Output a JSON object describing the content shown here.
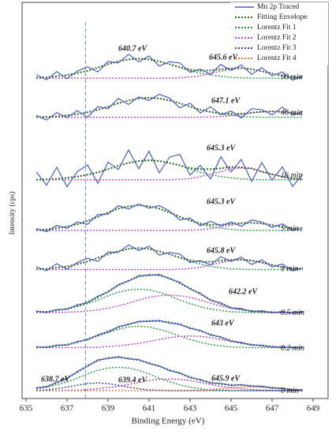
{
  "chart_data": {
    "type": "line",
    "x_label": "Binding Energy (eV)",
    "y_label": "Intensity (cps)",
    "x": [
      635.5,
      636,
      636.5,
      637,
      637.5,
      638,
      638.5,
      639,
      639.5,
      640,
      640.5,
      641,
      641.5,
      642,
      642.5,
      643,
      643.5,
      644,
      644.5,
      645,
      645.5,
      646,
      646.5,
      647,
      647.5,
      648,
      648.5
    ],
    "xlim": [
      635,
      649
    ],
    "xticks": [
      635,
      637,
      639,
      641,
      643,
      645,
      647,
      649
    ],
    "ylim": [
      0,
      100
    ],
    "reference_line": 637.9,
    "series": [
      {
        "name": "Mn 2p Traced",
        "color": "#4a5fc1",
        "dash": "none"
      },
      {
        "name": "Fitting Envelope",
        "color": "#2e6b1f",
        "dash": "2 2"
      },
      {
        "name": "Lorentz Fit 1",
        "color": "#1f9a3a",
        "dash": "2 2"
      },
      {
        "name": "Lorentz Fit 2",
        "color": "#c23fc8",
        "dash": "2 2"
      },
      {
        "name": "Lorentz Fit 3",
        "color": "#2a3a9a",
        "dash": "2 2"
      },
      {
        "name": "Lorentz Fit 4",
        "color": "#e0742a",
        "dash": "2 2"
      }
    ],
    "panels": [
      {
        "label": "90 min",
        "annotations": [
          "640.7 eV",
          "645.6 eV"
        ],
        "values": [
          [
            82.9,
            81.6,
            83.7,
            81.9,
            83.8,
            84.9,
            83.6,
            86.3,
            85.9,
            88.1,
            86.2,
            87.7,
            85.1,
            86.2,
            85.9,
            83.5,
            84.3,
            83.0,
            85.5,
            84.0,
            85.4,
            83.0,
            84.7,
            82.6,
            83.6,
            81.5,
            82.6
          ],
          [
            82.1,
            82.2,
            82.5,
            82.8,
            83.3,
            83.9,
            84.7,
            85.6,
            86.3,
            86.8,
            87,
            86.8,
            86.3,
            85.6,
            84.8,
            84.2,
            83.9,
            84.0,
            84.3,
            84.5,
            84.6,
            84.3,
            83.8,
            83.2,
            82.6,
            82.3,
            82.1
          ],
          [
            82.1,
            82.2,
            82.5,
            82.8,
            83.3,
            83.9,
            84.7,
            85.6,
            86.3,
            86.8,
            87,
            86.8,
            86.3,
            85.6,
            84.7,
            83.9,
            83.3,
            82.8,
            82.5,
            82.2,
            82.1,
            82,
            82,
            82,
            82,
            82,
            82
          ],
          [
            82,
            82,
            82,
            82,
            82,
            82,
            82,
            82,
            82,
            82,
            82,
            82,
            82,
            82.0,
            82.1,
            82.3,
            82.6,
            83.2,
            83.8,
            84.3,
            84.5,
            84.3,
            83.8,
            83.2,
            82.6,
            82.3,
            82.1
          ],
          null,
          null
        ]
      },
      {
        "label": "46 min",
        "annotations": [
          "647.1 eV"
        ],
        "values": [
          [
            72.5,
            71.3,
            73.2,
            71.9,
            73.7,
            72.0,
            74.7,
            74.2,
            76.8,
            75.3,
            77.2,
            76.3,
            77.9,
            76.9,
            74.4,
            75.6,
            73.1,
            74.7,
            72.6,
            73.6,
            71.8,
            74.2,
            73.9,
            72.6,
            74.6,
            72.5,
            73.5
          ],
          [
            72,
            72.1,
            72.2,
            72.5,
            72.8,
            73.3,
            73.9,
            74.7,
            75.6,
            76.3,
            76.8,
            77,
            76.8,
            76.3,
            75.6,
            74.7,
            73.9,
            73.4,
            73.0,
            72.9,
            72.9,
            73.2,
            73.4,
            73.5,
            73.4,
            73.1,
            72.7
          ],
          [
            72,
            72.1,
            72.2,
            72.5,
            72.8,
            73.3,
            73.9,
            74.7,
            75.6,
            76.3,
            76.8,
            77,
            76.8,
            76.3,
            75.6,
            74.7,
            73.9,
            73.3,
            72.8,
            72.5,
            72.2,
            72.1,
            72,
            72,
            72,
            72,
            72
          ],
          [
            72,
            72,
            72,
            72,
            72,
            72,
            72,
            72,
            72,
            72,
            72,
            72,
            72,
            72,
            72,
            72,
            72.0,
            72.1,
            72.2,
            72.4,
            72.7,
            73.1,
            73.4,
            73.5,
            73.4,
            73.1,
            72.7
          ],
          null,
          null
        ]
      },
      {
        "label": "16 min",
        "annotations": [
          "645.3 eV"
        ],
        "values": [
          [
            58,
            54.6,
            59.2,
            54.2,
            58.1,
            59.8,
            55.1,
            60.5,
            58.6,
            63.6,
            58.8,
            63.3,
            57.8,
            61.8,
            62.5,
            57.2,
            59.7,
            56.2,
            61.9,
            58.0,
            61.2,
            55.6,
            60.4,
            55.9,
            59.3,
            54.3,
            57.4
          ],
          [
            56,
            56.1,
            56.2,
            56.5,
            56.8,
            57.3,
            57.9,
            58.7,
            59.6,
            60.3,
            60.8,
            61,
            60.8,
            60.3,
            59.7,
            59.0,
            58.7,
            58.7,
            58.9,
            59.3,
            59.2,
            58.9,
            58.1,
            57.4,
            56.8,
            56.3,
            56.1
          ],
          [
            56,
            56.1,
            56.2,
            56.5,
            56.8,
            57.3,
            57.9,
            58.7,
            59.6,
            60.3,
            60.8,
            61,
            60.8,
            60.3,
            59.6,
            58.7,
            57.9,
            57.3,
            56.8,
            56.5,
            56.2,
            56.1,
            56,
            56,
            56,
            56,
            56
          ],
          [
            56,
            56,
            56,
            56,
            56,
            56,
            56,
            56,
            56,
            56,
            56,
            56,
            56,
            56.0,
            56.1,
            56.3,
            56.8,
            57.4,
            58.1,
            58.8,
            59,
            58.8,
            58.1,
            57.4,
            56.8,
            56.3,
            56.1
          ],
          null,
          null
        ]
      },
      {
        "label": "5 min",
        "annotations": [
          "645.3 eV"
        ],
        "values": [
          [
            43.5,
            42.7,
            44.3,
            43.6,
            45.2,
            44.6,
            47.1,
            47.2,
            49.4,
            48.5,
            49.8,
            48.7,
            49.4,
            48.0,
            45.7,
            46.2,
            44.2,
            45.4,
            44.2,
            45.2,
            44.1,
            45.7,
            45.2,
            43.8,
            44.7,
            43.1,
            43.8
          ],
          [
            43.1,
            43.3,
            43.6,
            44.0,
            44.6,
            45.5,
            46.5,
            47.6,
            48.6,
            49.2,
            49.5,
            49.2,
            48.6,
            47.6,
            46.5,
            45.6,
            44.8,
            44.5,
            44.5,
            44.7,
            44.9,
            45,
            44.8,
            44.4,
            43.9,
            43.5,
            43.2
          ],
          [
            43.1,
            43.3,
            43.6,
            44.0,
            44.6,
            45.5,
            46.5,
            47.6,
            48.6,
            49.2,
            49.5,
            49.2,
            48.6,
            47.6,
            46.5,
            45.5,
            44.6,
            44.0,
            43.6,
            43.3,
            43.1,
            43,
            43,
            43,
            43,
            43,
            43
          ],
          [
            43,
            43,
            43,
            43,
            43,
            43,
            43,
            43,
            43,
            43,
            43,
            43,
            43,
            43,
            43,
            43.1,
            43.2,
            43.5,
            43.9,
            44.4,
            44.8,
            45,
            44.8,
            44.4,
            43.9,
            43.5,
            43.2
          ],
          null,
          null
        ]
      },
      {
        "label": "1 min",
        "annotations": [
          "645.8 eV"
        ],
        "values": [
          [
            33.7,
            32.7,
            34.5,
            33.1,
            34.8,
            35.9,
            35.1,
            37.5,
            37.4,
            39.3,
            37.9,
            39.0,
            36.7,
            37.4,
            37.0,
            34.8,
            35.3,
            34.2,
            36.3,
            35.1,
            36.2,
            34.3,
            35.5,
            33.7,
            34.4,
            32.7,
            33.5
          ],
          [
            33.1,
            33.2,
            33.5,
            33.8,
            34.4,
            35.1,
            36.0,
            36.9,
            37.7,
            38.3,
            38.5,
            38.3,
            37.7,
            36.9,
            36.1,
            35.4,
            35.0,
            35.0,
            35.3,
            35.5,
            35.6,
            35.3,
            34.8,
            34.2,
            33.6,
            33.3,
            33.1
          ],
          [
            33.1,
            33.2,
            33.5,
            33.8,
            34.4,
            35.1,
            36.0,
            36.9,
            37.7,
            38.3,
            38.5,
            38.3,
            37.7,
            36.9,
            36.0,
            35.1,
            34.4,
            33.8,
            33.5,
            33.2,
            33.1,
            33,
            33,
            33,
            33,
            33,
            33
          ],
          [
            33,
            33,
            33,
            33,
            33,
            33,
            33,
            33,
            33,
            33,
            33,
            33,
            33,
            33,
            33.1,
            33.3,
            33.6,
            34.2,
            34.8,
            35.3,
            35.5,
            35.3,
            34.8,
            34.2,
            33.6,
            33.3,
            33.1
          ],
          null,
          null
        ]
      },
      {
        "label": "0.5 min",
        "annotations": [
          "642.2 eV"
        ],
        "values": [
          [
            22.4,
            22.0,
            22.8,
            22.8,
            24.0,
            24.5,
            26.2,
            27.2,
            29.2,
            30.0,
            31.5,
            31.5,
            31.8,
            30.6,
            29.8,
            28.0,
            27.0,
            25.1,
            24.5,
            23.1,
            23.1,
            22.2,
            22.5,
            21.9,
            22.3,
            21.8,
            22.3
          ],
          [
            22.1,
            22.2,
            22.5,
            23.0,
            23.7,
            24.7,
            25.9,
            27.4,
            28.9,
            30.2,
            31.2,
            31.7,
            31.5,
            30.8,
            29.5,
            28.2,
            26.7,
            25.3,
            24.2,
            23.3,
            22.8,
            22.4,
            22.2,
            22.1,
            22,
            22,
            22
          ],
          [
            22.1,
            22.2,
            22.5,
            22.9,
            23.5,
            24.3,
            25.2,
            26.3,
            27.2,
            27.8,
            28,
            27.8,
            27.2,
            26.3,
            25.2,
            24.3,
            23.5,
            22.9,
            22.5,
            22.2,
            22.1,
            22,
            22,
            22,
            22,
            22,
            22
          ],
          [
            22,
            22,
            22,
            22.1,
            22.2,
            22.4,
            22.7,
            23.1,
            23.7,
            24.4,
            25.2,
            25.9,
            26.3,
            26.5,
            26.3,
            25.9,
            25.2,
            24.4,
            23.7,
            23.1,
            22.7,
            22.4,
            22.2,
            22.1,
            22,
            22,
            22
          ],
          null,
          null
        ]
      },
      {
        "label": "0.2 min",
        "annotations": [
          "643 eV"
        ],
        "values": [
          [
            13.3,
            13.0,
            13.7,
            13.6,
            14.6,
            15.0,
            16.3,
            17.0,
            18.4,
            18.9,
            19.8,
            19.7,
            20.0,
            19.3,
            19.1,
            17.9,
            17.5,
            16.2,
            15.8,
            14.6,
            14.4,
            13.6,
            13.7,
            13.1,
            13.3,
            12.9,
            13.2
          ],
          [
            13.1,
            13.2,
            13.5,
            13.8,
            14.4,
            15.2,
            16.1,
            17.2,
            18.2,
            19.1,
            19.6,
            19.9,
            19.8,
            19.5,
            18.9,
            18.1,
            17.3,
            16.4,
            15.6,
            14.8,
            14.2,
            13.8,
            13.5,
            13.3,
            13.1,
            13.1,
            13.0
          ],
          [
            13.1,
            13.2,
            13.5,
            13.8,
            14.4,
            15.1,
            16.0,
            16.9,
            17.7,
            18.3,
            18.5,
            18.3,
            17.7,
            16.9,
            16.0,
            15.1,
            14.4,
            13.8,
            13.5,
            13.2,
            13.1,
            13,
            13,
            13,
            13,
            13,
            13
          ],
          [
            13,
            13,
            13,
            13,
            13,
            13.1,
            13.1,
            13.3,
            13.5,
            13.8,
            14.1,
            14.6,
            15.1,
            15.6,
            15.9,
            16,
            15.9,
            15.6,
            15.1,
            14.6,
            14.1,
            13.8,
            13.5,
            13.3,
            13.1,
            13.1,
            13.0
          ],
          null,
          null
        ]
      },
      {
        "label": "0 min",
        "annotations": [
          "638.7 eV",
          "639.4 eV",
          "645.9 eV"
        ],
        "values": [
          [
            2.8,
            2.9,
            4.2,
            5.1,
            6.9,
            8.2,
            9.9,
            10.2,
            10.7,
            10.1,
            10.0,
            8.9,
            8.4,
            7.1,
            6.6,
            5.3,
            4.9,
            3.9,
            3.9,
            3.3,
            3.6,
            3.1,
            3.2,
            2.6,
            2.7,
            2.1,
            2.3
          ],
          [
            2.6,
            3.1,
            4.0,
            5.3,
            6.7,
            8.4,
            9.7,
            10.4,
            10.5,
            10.3,
            9.8,
            9.1,
            8.2,
            7.3,
            6.4,
            5.5,
            4.7,
            4.1,
            3.7,
            3.5,
            3.4,
            3.3,
            3.0,
            2.8,
            2.5,
            2.3,
            2.1
          ],
          [
            2.5,
            2.9,
            3.5,
            4.3,
            5.2,
            6.3,
            7.2,
            7.8,
            8,
            7.8,
            7.2,
            6.3,
            5.2,
            4.3,
            3.5,
            2.9,
            2.5,
            2.2,
            2.1,
            2,
            2,
            2,
            2,
            2,
            2,
            2,
            2
          ],
          [
            2,
            2,
            2,
            2.1,
            2.1,
            2.3,
            2.5,
            2.8,
            3.1,
            3.6,
            4.1,
            4.6,
            4.9,
            5,
            4.9,
            4.6,
            4.1,
            3.6,
            3.1,
            2.8,
            2.5,
            2.3,
            2.1,
            2.1,
            2,
            2,
            2
          ],
          [
            2.1,
            2.2,
            2.5,
            2.9,
            3.4,
            3.8,
            4,
            3.8,
            3.4,
            2.9,
            2.5,
            2.2,
            2.1,
            2,
            2,
            2,
            2,
            2,
            2,
            2,
            2,
            2,
            2,
            2,
            2,
            2,
            2
          ],
          [
            2,
            2,
            2,
            2,
            2,
            2,
            2,
            2,
            2,
            2,
            2,
            2,
            2,
            2,
            2,
            2.0,
            2.1,
            2.3,
            2.5,
            2.7,
            2.9,
            3,
            2.9,
            2.7,
            2.5,
            2.3,
            2.1
          ]
        ]
      }
    ]
  }
}
